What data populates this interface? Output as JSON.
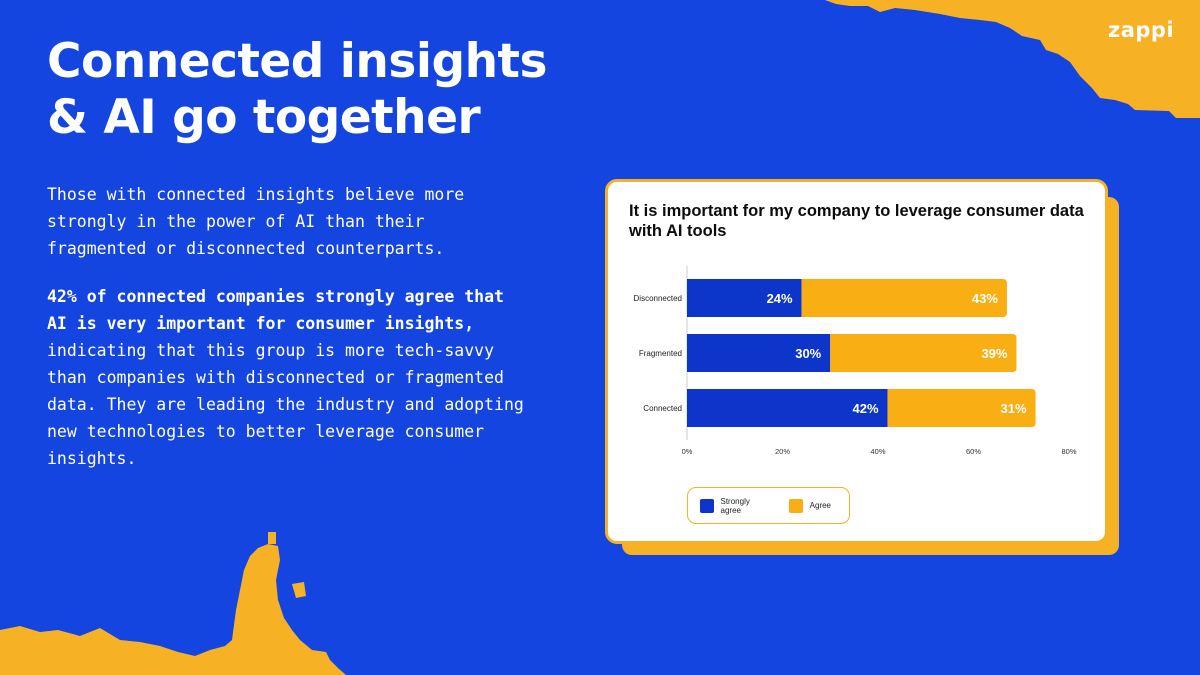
{
  "brand": {
    "logo_text": "zappi"
  },
  "headline": {
    "line1": "Connected insights",
    "line2": "& AI go together"
  },
  "intro": "Those with connected insights believe more strongly in the power of AI than their fragmented or disconnected counterparts.",
  "finding": {
    "highlight": "42% of connected companies strongly agree that AI is very important for consumer insights,",
    "rest": " indicating that this group is more tech-savvy than companies with disconnected or fragmented data. They are leading the industry and adopting new technologies to better leverage consumer insights."
  },
  "colors": {
    "background": "#1445e0",
    "accent": "#f7b125",
    "series_strong": "#0d35c9",
    "series_agree": "#f9af14"
  },
  "chart_data": {
    "type": "bar",
    "orientation": "horizontal",
    "stacked": true,
    "title": "It is important for my company to leverage consumer data with AI tools",
    "categories": [
      "Disconnected",
      "Fragmented",
      "Connected"
    ],
    "series": [
      {
        "name": "Strongly agree",
        "values": [
          24,
          30,
          42
        ],
        "labels": [
          "24%",
          "30%",
          "42%"
        ]
      },
      {
        "name": "Agree",
        "values": [
          43,
          39,
          31
        ],
        "labels": [
          "43%",
          "39%",
          "31%"
        ]
      }
    ],
    "xlim": [
      0,
      80
    ],
    "x_ticks": [
      0,
      20,
      40,
      60,
      80
    ],
    "x_tick_labels": [
      "0%",
      "20%",
      "40%",
      "60%",
      "80%"
    ],
    "xlabel": "",
    "ylabel": "",
    "grid": false,
    "legend_position": "bottom"
  }
}
